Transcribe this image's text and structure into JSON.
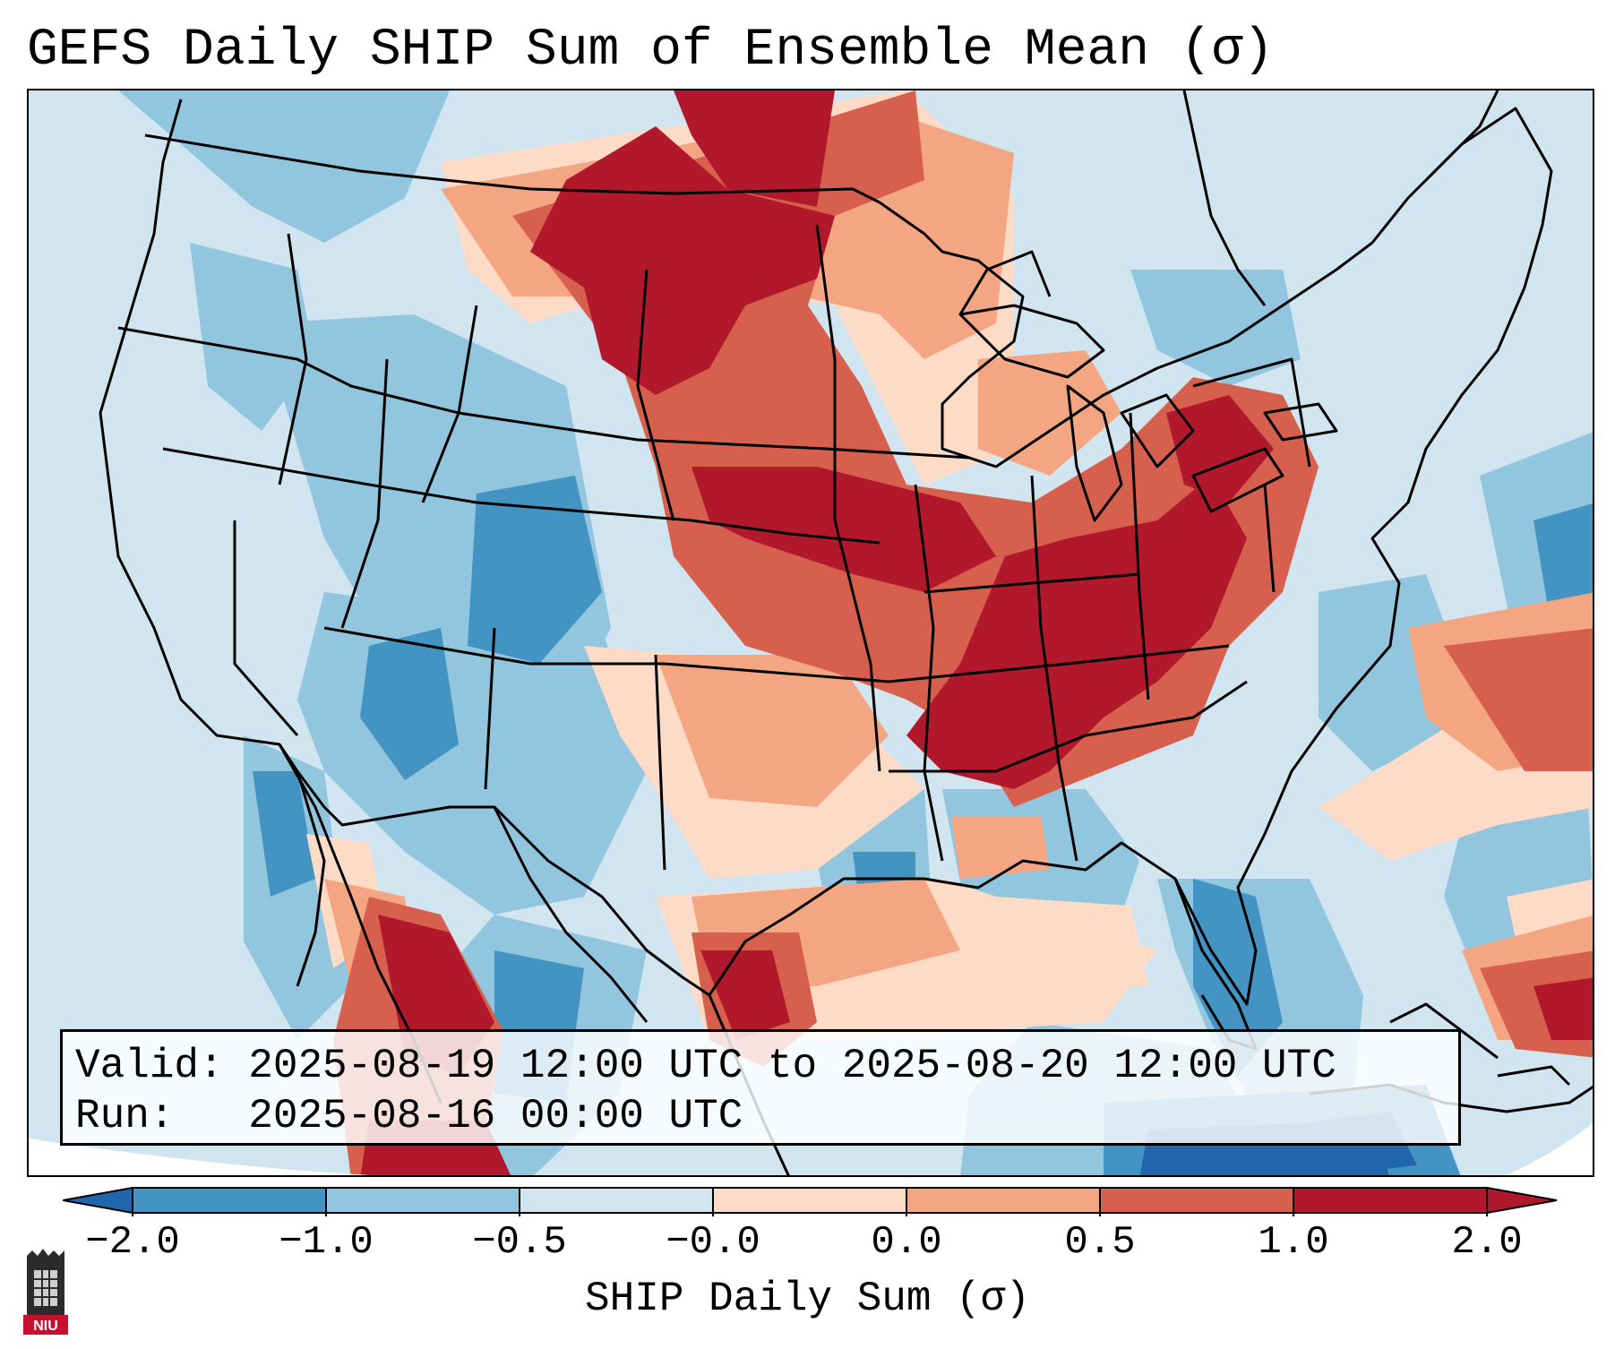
{
  "title": "GEFS Daily SHIP Sum of Ensemble Mean (σ)",
  "info": {
    "valid": "Valid: 2025-08-19 12:00 UTC to 2025-08-20 12:00 UTC",
    "run": "Run:   2025-08-16 00:00 UTC"
  },
  "colorbar": {
    "label": "SHIP Daily Sum (σ)",
    "ticks": [
      "−2.0",
      "−1.0",
      "−0.5",
      "−0.0",
      "0.0",
      "0.5",
      "1.0",
      "2.0"
    ],
    "colors": [
      "#2166ac",
      "#4393c3",
      "#92c5de",
      "#d1e5f0",
      "#fddbc7",
      "#f4a582",
      "#d6604d",
      "#b2182b"
    ]
  },
  "logo_text": "NIU"
}
